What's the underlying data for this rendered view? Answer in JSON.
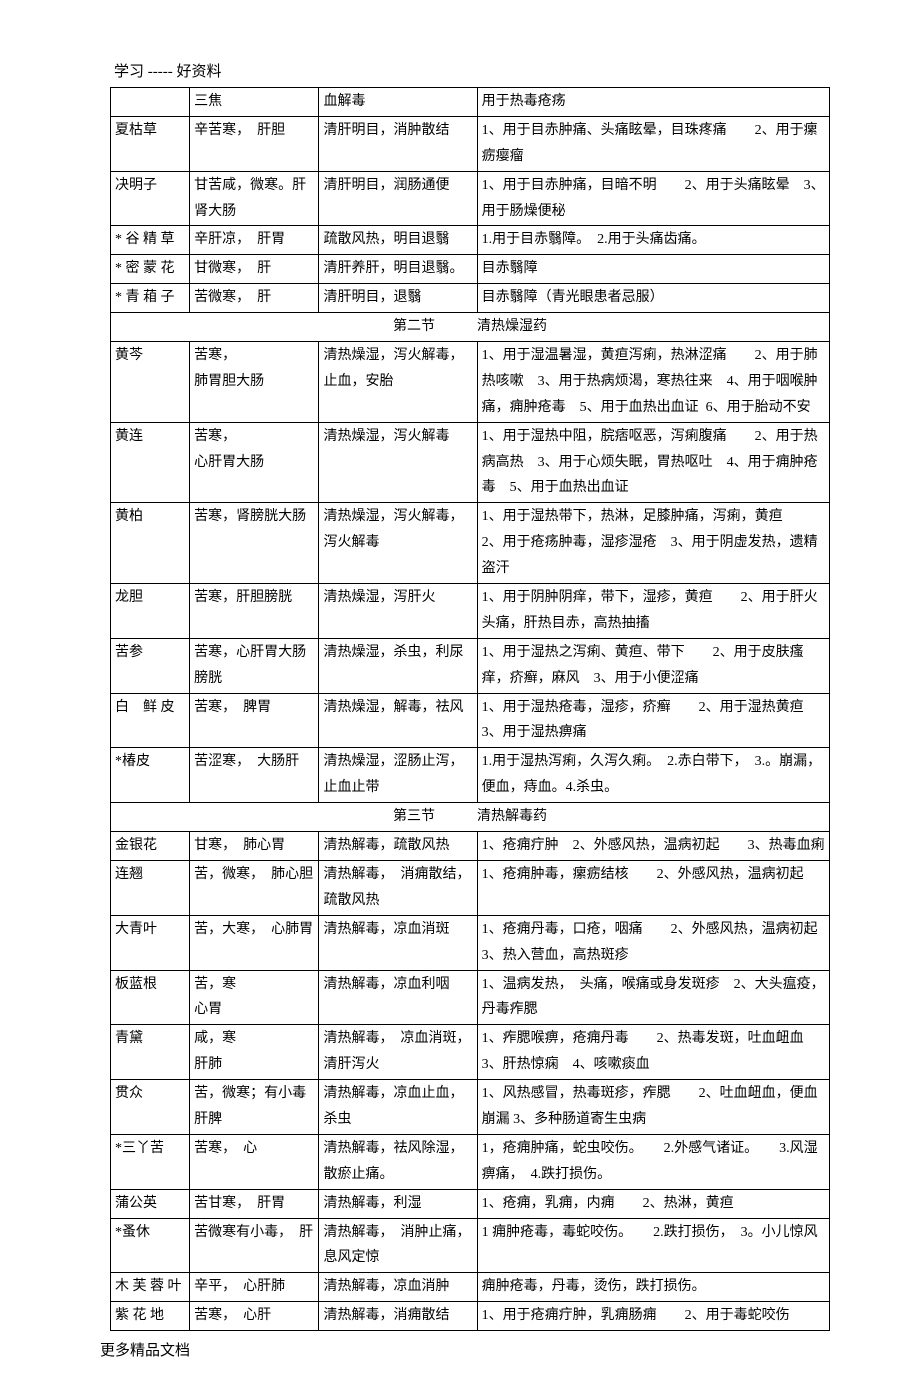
{
  "header": "学习 ----- 好资料",
  "footer": "更多精品文档",
  "section1_rows": [
    {
      "name": "",
      "prop": "三焦",
      "func": "血解毒",
      "use": "用于热毒疮疡"
    },
    {
      "name": "夏枯草",
      "prop": "辛苦寒，　肝胆",
      "func": "清肝明目，消肿散结",
      "use": "1、用于目赤肿痛、头痛眩晕，目珠疼痛　　2、用于瘰疬瘿瘤"
    },
    {
      "name": "决明子",
      "prop": "甘苦咸，微寒。肝肾大肠",
      "func": "清肝明目，润肠通便",
      "use": "1、用于目赤肿痛，目暗不明　　2、用于头痛眩晕　3、用于肠燥便秘"
    },
    {
      "name": "* 谷 精 草",
      "prop": "辛肝凉，　肝胃",
      "func": "疏散风热，明目退翳",
      "use": "1.用于目赤翳障。　2.用于头痛齿痛。"
    },
    {
      "name": "* 密 蒙 花",
      "prop": "甘微寒，　肝",
      "func": "清肝养肝，明目退翳。",
      "use": "目赤翳障"
    },
    {
      "name": "* 青 葙 子",
      "prop": "苦微寒，　肝",
      "func": "清肝明目，退翳",
      "use": "目赤翳障（青光眼患者忌服）"
    }
  ],
  "section2_title": "第二节　　　清热燥湿药",
  "section2_rows": [
    {
      "name": "黄芩",
      "prop": "苦寒，\n肺胃胆大肠",
      "func": "清热燥湿，泻火解毒，止血，安胎",
      "use": "1、用于湿温暑湿，黄疸泻痢，热淋涩痛　　2、用于肺热咳嗽　3、用于热病烦渴，寒热往来　4、用于咽喉肿痛，痈肿疮毒　5、用于血热出血证  6、用于胎动不安"
    },
    {
      "name": "黄连",
      "prop": "苦寒，\n心肝胃大肠",
      "func": "清热燥湿，泻火解毒",
      "use": "1、用于湿热中阻，脘痞呕恶，泻痢腹痛　　2、用于热病高热　3、用于心烦失眠，胃热呕吐　4、用于痈肿疮毒　5、用于血热出血证"
    },
    {
      "name": "黄柏",
      "prop": "苦寒，肾膀胱大肠",
      "func": "清热燥湿，泻火解毒，泻火解毒",
      "use": "1、用于湿热带下，热淋，足膝肿痛，泻痢，黄疸　　2、用于疮疡肿毒，湿疹湿疮　3、用于阴虚发热，遗精盗汗"
    },
    {
      "name": "龙胆",
      "prop": "苦寒，肝胆膀胱",
      "func": "清热燥湿，泻肝火",
      "use": "1、用于阴肿阴痒，带下，湿疹，黄疸　　2、用于肝火头痛，肝热目赤，高热抽搐"
    },
    {
      "name": "苦参",
      "prop": "苦寒，心肝胃大肠膀胱",
      "func": "清热燥湿，杀虫，利尿",
      "use": "1、用于湿热之泻痢、黄疸、带下　　2、用于皮肤瘙痒，疥癣，麻风　3、用于小便涩痛"
    },
    {
      "name": "白　鲜 皮",
      "prop": "苦寒，　脾胃",
      "func": "清热燥湿，解毒，祛风",
      "use": "1、用于湿热疮毒，湿疹，疥癣　　2、用于湿热黄疸　3、用于湿热痹痛"
    },
    {
      "name": "*椿皮",
      "prop": "苦涩寒，　大肠肝",
      "func": "清热燥湿，涩肠止泻，止血止带",
      "use": "1.用于湿热泻痢，久泻久痢。　2.赤白带下，　3.。崩漏，便血，痔血。4.杀虫。"
    }
  ],
  "section3_title": "第三节　　　清热解毒药",
  "section3_rows": [
    {
      "name": "金银花",
      "prop": "甘寒，　肺心胃",
      "func": "清热解毒，疏散风热",
      "use": "1、疮痈疔肿　2、外感风热，温病初起　　3、热毒血痢"
    },
    {
      "name": "连翘",
      "prop": "苦，微寒，　肺心胆",
      "func": "清热解毒，　消痈散结，　疏散风热",
      "use": "1、疮痈肿毒，瘰疬结核　　2、外感风热，温病初起"
    },
    {
      "name": "大青叶",
      "prop": "苦，大寒，　心肺胃",
      "func": "清热解毒，凉血消斑",
      "use": "1、疮痈丹毒，口疮，咽痛　　2、外感风热，温病初起　3、热入营血，高热斑疹"
    },
    {
      "name": "板蓝根",
      "prop": "苦，寒\n心胃",
      "func": "清热解毒，凉血利咽",
      "use": "1、温病发热，　头痛，喉痛或身发斑疹　2、大头瘟疫，丹毒痄腮"
    },
    {
      "name": "青黛",
      "prop": "咸，寒\n肝肺",
      "func": "清热解毒，　凉血消斑，　清肝泻火",
      "use": "1、痄腮喉痹，疮痈丹毒　　2、热毒发斑，吐血衄血　　3、肝热惊痫　4、咳嗽痰血"
    },
    {
      "name": "贯众",
      "prop": "苦，微寒；有小毒肝脾",
      "func": "清热解毒，凉血止血，杀虫",
      "use": "1、风热感冒，热毒斑疹，痄腮　　2、吐血衄血，便血崩漏 3、多种肠道寄生虫病"
    },
    {
      "name": "*三丫苦",
      "prop": "苦寒，　心",
      "func": "清热解毒，祛风除湿，散瘀止痛。",
      "use": "1，疮痈肿痛，蛇虫咬伤。　　2.外感气诸证。　　3.风湿痹痛，　4.跌打损伤。"
    },
    {
      "name": "蒲公英",
      "prop": "苦甘寒，　肝胃",
      "func": "清热解毒，利湿",
      "use": "1、疮痈，乳痈，内痈　　2、热淋，黄疸"
    },
    {
      "name": "*蚤休",
      "prop": "苦微寒有小毒，　肝",
      "func": "清热解毒，　消肿止痛，　息风定惊",
      "use": "1 痈肿疮毒，毒蛇咬伤。　　2.跌打损伤，　3。小儿惊风"
    },
    {
      "name": "木 芙 蓉 叶",
      "prop": "辛平，　心肝肺",
      "func": "清热解毒，凉血消肿",
      "use": "痈肿疮毒，丹毒，烫伤，跌打损伤。"
    },
    {
      "name": "紫 花 地",
      "prop": "苦寒，　心肝",
      "func": "清热解毒，消痈散结",
      "use": "1、用于疮痈疔肿，乳痈肠痈　　2、用于毒蛇咬伤"
    }
  ]
}
